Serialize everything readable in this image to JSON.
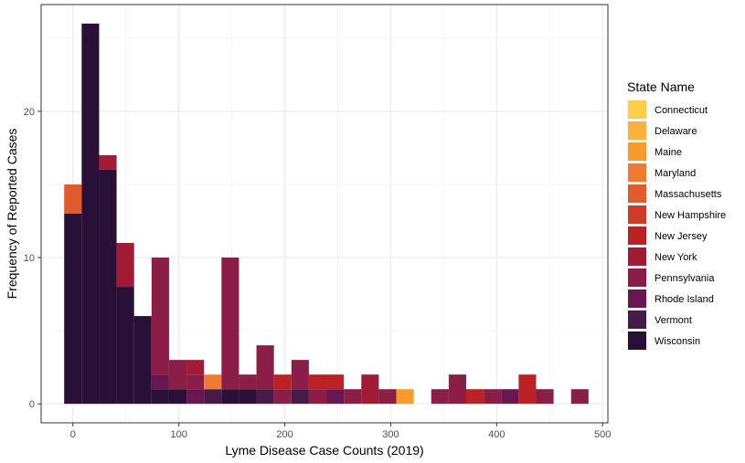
{
  "chart_data": {
    "type": "bar",
    "stacked": true,
    "xlabel": "Lyme Disease Case Counts (2019)",
    "ylabel": "Frequency of Reported Cases",
    "bin_width": 16.5,
    "xlim": [
      -30,
      505
    ],
    "ylim": [
      -1.3,
      27.3
    ],
    "x_ticks": [
      0,
      100,
      200,
      300,
      400,
      500
    ],
    "y_ticks": [
      0,
      10,
      20
    ],
    "grid": true,
    "legend": {
      "title": "State Name",
      "position": "right"
    },
    "series": [
      {
        "name": "Connecticut",
        "color": "#FCCE47"
      },
      {
        "name": "Delaware",
        "color": "#FBB13A"
      },
      {
        "name": "Maine",
        "color": "#F89B2F"
      },
      {
        "name": "Maryland",
        "color": "#EF7A32"
      },
      {
        "name": "Massachusetts",
        "color": "#E05C2E"
      },
      {
        "name": "New Hampshire",
        "color": "#D13A2B"
      },
      {
        "name": "New Jersey",
        "color": "#BA2226"
      },
      {
        "name": "New York",
        "color": "#A21B34"
      },
      {
        "name": "Pennsylvania",
        "color": "#8A1E47"
      },
      {
        "name": "Rhode Island",
        "color": "#6A1651"
      },
      {
        "name": "Vermont",
        "color": "#461B48"
      },
      {
        "name": "Wisconsin",
        "color": "#291036"
      }
    ],
    "bins": [
      {
        "center": 0,
        "segments": [
          [
            "Wisconsin",
            13
          ],
          [
            "Massachusetts",
            2
          ]
        ]
      },
      {
        "center": 16.5,
        "segments": [
          [
            "Wisconsin",
            26
          ]
        ]
      },
      {
        "center": 33,
        "segments": [
          [
            "Wisconsin",
            16
          ],
          [
            "New York",
            1
          ]
        ]
      },
      {
        "center": 49.5,
        "segments": [
          [
            "Wisconsin",
            8
          ],
          [
            "New York",
            3
          ]
        ]
      },
      {
        "center": 66,
        "segments": [
          [
            "Wisconsin",
            6
          ]
        ]
      },
      {
        "center": 82.5,
        "segments": [
          [
            "Wisconsin",
            1
          ],
          [
            "Rhode Island",
            1
          ],
          [
            "Pennsylvania",
            8
          ]
        ]
      },
      {
        "center": 99,
        "segments": [
          [
            "Wisconsin",
            1
          ],
          [
            "Pennsylvania",
            2
          ]
        ]
      },
      {
        "center": 115.5,
        "segments": [
          [
            "Rhode Island",
            1
          ],
          [
            "Pennsylvania",
            1
          ],
          [
            "New York",
            1
          ]
        ]
      },
      {
        "center": 132,
        "segments": [
          [
            "Vermont",
            1
          ],
          [
            "Maryland",
            1
          ]
        ]
      },
      {
        "center": 148.5,
        "segments": [
          [
            "Wisconsin",
            1
          ],
          [
            "Pennsylvania",
            9
          ]
        ]
      },
      {
        "center": 165,
        "segments": [
          [
            "Wisconsin",
            1
          ],
          [
            "Pennsylvania",
            1
          ]
        ]
      },
      {
        "center": 181.5,
        "segments": [
          [
            "Vermont",
            1
          ],
          [
            "Pennsylvania",
            3
          ]
        ]
      },
      {
        "center": 198,
        "segments": [
          [
            "Pennsylvania",
            1
          ],
          [
            "New Jersey",
            1
          ]
        ]
      },
      {
        "center": 214.5,
        "segments": [
          [
            "Vermont",
            1
          ],
          [
            "Pennsylvania",
            2
          ]
        ]
      },
      {
        "center": 231,
        "segments": [
          [
            "Pennsylvania",
            1
          ],
          [
            "New Jersey",
            1
          ]
        ]
      },
      {
        "center": 247.5,
        "segments": [
          [
            "Rhode Island",
            1
          ],
          [
            "New Jersey",
            1
          ]
        ]
      },
      {
        "center": 264,
        "segments": [
          [
            "Pennsylvania",
            1
          ]
        ]
      },
      {
        "center": 280.5,
        "segments": [
          [
            "New York",
            2
          ]
        ]
      },
      {
        "center": 297,
        "segments": [
          [
            "Pennsylvania",
            1
          ]
        ]
      },
      {
        "center": 313.5,
        "segments": [
          [
            "Maine",
            1
          ]
        ]
      },
      {
        "center": 330,
        "segments": []
      },
      {
        "center": 346.5,
        "segments": [
          [
            "Pennsylvania",
            1
          ]
        ]
      },
      {
        "center": 363,
        "segments": [
          [
            "Pennsylvania",
            2
          ]
        ]
      },
      {
        "center": 379.5,
        "segments": [
          [
            "New Jersey",
            1
          ]
        ]
      },
      {
        "center": 396,
        "segments": [
          [
            "Pennsylvania",
            1
          ]
        ]
      },
      {
        "center": 412.5,
        "segments": [
          [
            "Rhode Island",
            1
          ]
        ]
      },
      {
        "center": 429,
        "segments": [
          [
            "New Jersey",
            2
          ]
        ]
      },
      {
        "center": 445.5,
        "segments": [
          [
            "Pennsylvania",
            1
          ]
        ]
      },
      {
        "center": 462,
        "segments": []
      },
      {
        "center": 478.5,
        "segments": [
          [
            "Pennsylvania",
            1
          ]
        ]
      }
    ]
  }
}
